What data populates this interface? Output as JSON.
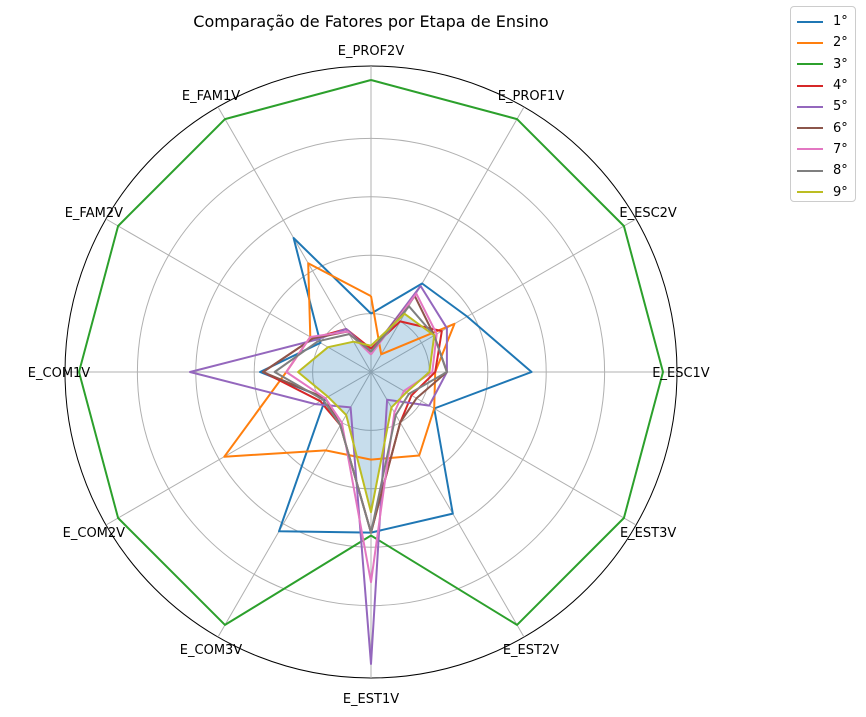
{
  "chart_data": {
    "type": "radar",
    "title": "Comparação de Fatores por Etapa de Ensino",
    "axes": [
      "E_PROF2V",
      "E_PROF1V",
      "E_ESC2V",
      "E_ESC1V",
      "E_EST3V",
      "E_EST2V",
      "E_EST1V",
      "E_COM3V",
      "E_COM2V",
      "E_COM1V",
      "E_FAM2V",
      "E_FAM1V"
    ],
    "rmax": 1.0,
    "grid": true,
    "legend_position": "top-right",
    "filled_series": "9°",
    "series": [
      {
        "name": "1°",
        "color": "#1f77b4",
        "values": [
          0.2,
          0.35,
          0.38,
          0.55,
          0.25,
          0.56,
          0.55,
          0.63,
          0.18,
          0.38,
          0.2,
          0.53
        ]
      },
      {
        "name": "2°",
        "color": "#ff7f0e",
        "values": [
          0.26,
          0.07,
          0.33,
          0.22,
          0.25,
          0.33,
          0.3,
          0.31,
          0.58,
          0.29,
          0.24,
          0.43
        ]
      },
      {
        "name": "3°",
        "color": "#2ca02c",
        "values": [
          1.0,
          1.0,
          1.0,
          1.0,
          1.0,
          1.0,
          0.56,
          1.0,
          1.0,
          1.0,
          1.0,
          1.0
        ]
      },
      {
        "name": "4°",
        "color": "#d62728",
        "values": [
          0.08,
          0.2,
          0.28,
          0.22,
          0.16,
          0.2,
          0.55,
          0.21,
          0.2,
          0.37,
          0.23,
          0.17
        ]
      },
      {
        "name": "5°",
        "color": "#9467bd",
        "values": [
          0.07,
          0.34,
          0.3,
          0.26,
          0.23,
          0.11,
          1.0,
          0.14,
          0.22,
          0.62,
          0.22,
          0.17
        ]
      },
      {
        "name": "6°",
        "color": "#8c564b",
        "values": [
          0.07,
          0.3,
          0.25,
          0.26,
          0.18,
          0.2,
          0.55,
          0.21,
          0.18,
          0.37,
          0.23,
          0.16
        ]
      },
      {
        "name": "7°",
        "color": "#e377c2",
        "values": [
          0.06,
          0.31,
          0.26,
          0.21,
          0.13,
          0.16,
          0.72,
          0.2,
          0.18,
          0.29,
          0.24,
          0.16
        ]
      },
      {
        "name": "8°",
        "color": "#7f7f7f",
        "values": [
          0.07,
          0.26,
          0.25,
          0.26,
          0.15,
          0.17,
          0.55,
          0.21,
          0.19,
          0.33,
          0.21,
          0.15
        ]
      },
      {
        "name": "9°",
        "color": "#bcbd22",
        "values": [
          0.09,
          0.23,
          0.25,
          0.2,
          0.14,
          0.14,
          0.48,
          0.17,
          0.17,
          0.25,
          0.17,
          0.12
        ]
      }
    ]
  }
}
